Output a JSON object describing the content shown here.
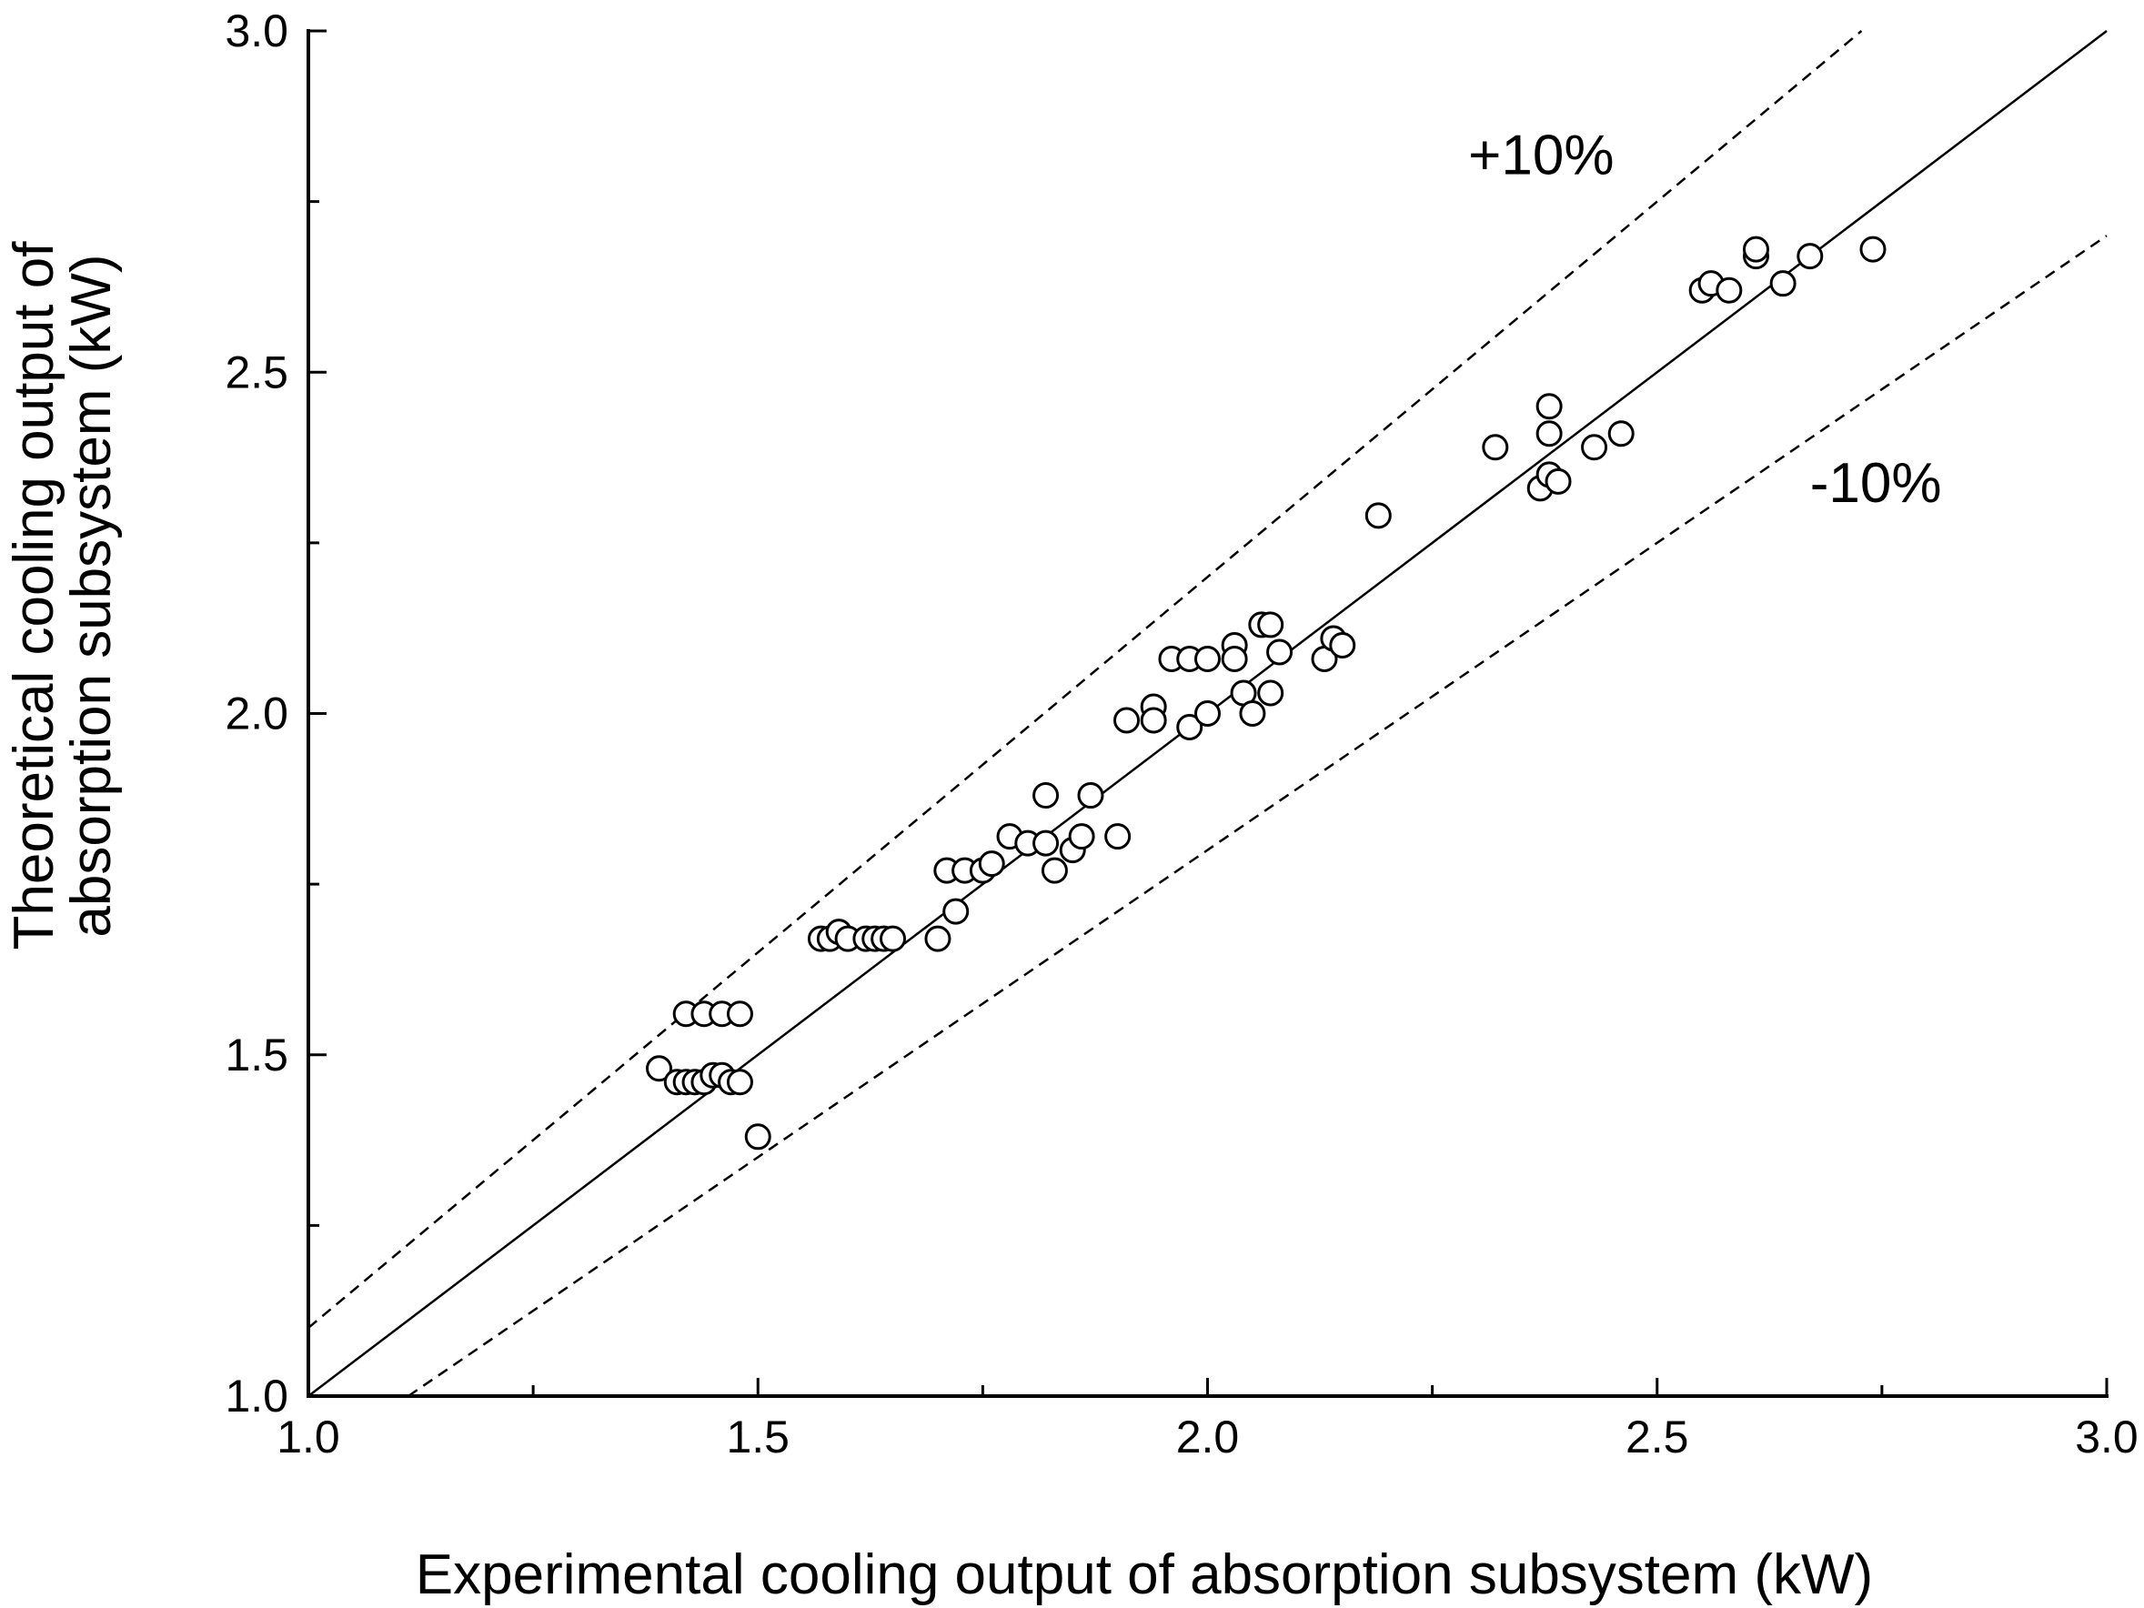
{
  "chart_data": {
    "type": "scatter",
    "xlabel": "Experimental cooling output of absorption subsystem (kW)",
    "ylabel_lines": [
      "Theoretical cooling output of",
      "absorption subsystem (kW)"
    ],
    "xlim": [
      1.0,
      3.0
    ],
    "ylim": [
      1.0,
      3.0
    ],
    "x_ticks": [
      1.0,
      1.5,
      2.0,
      2.5,
      3.0
    ],
    "y_ticks": [
      1.0,
      1.5,
      2.0,
      2.5,
      3.0
    ],
    "x_tick_labels": [
      "1.0",
      "1.5",
      "2.0",
      "2.5",
      "3.0"
    ],
    "y_tick_labels": [
      "1.0",
      "1.5",
      "2.0",
      "2.5",
      "3.0"
    ],
    "x_minor_step": 0.25,
    "y_minor_step": 0.25,
    "reference_lines": [
      {
        "name": "y = x",
        "slope": 1.0,
        "style": "solid"
      },
      {
        "name": "+10%",
        "slope": 1.1,
        "style": "dashed"
      },
      {
        "name": "-10%",
        "slope": 0.9,
        "style": "dashed"
      }
    ],
    "annotations": [
      {
        "text": "+10%",
        "x": 2.29,
        "y": 2.79
      },
      {
        "text": "-10%",
        "x": 2.67,
        "y": 2.31
      }
    ],
    "points": [
      [
        1.39,
        1.48
      ],
      [
        1.41,
        1.46
      ],
      [
        1.42,
        1.46
      ],
      [
        1.43,
        1.46
      ],
      [
        1.44,
        1.46
      ],
      [
        1.45,
        1.47
      ],
      [
        1.46,
        1.47
      ],
      [
        1.47,
        1.46
      ],
      [
        1.48,
        1.46
      ],
      [
        1.42,
        1.56
      ],
      [
        1.44,
        1.56
      ],
      [
        1.46,
        1.56
      ],
      [
        1.48,
        1.56
      ],
      [
        1.5,
        1.38
      ],
      [
        1.57,
        1.67
      ],
      [
        1.58,
        1.67
      ],
      [
        1.59,
        1.68
      ],
      [
        1.6,
        1.67
      ],
      [
        1.62,
        1.67
      ],
      [
        1.63,
        1.67
      ],
      [
        1.64,
        1.67
      ],
      [
        1.65,
        1.67
      ],
      [
        1.7,
        1.67
      ],
      [
        1.71,
        1.77
      ],
      [
        1.72,
        1.71
      ],
      [
        1.73,
        1.77
      ],
      [
        1.75,
        1.77
      ],
      [
        1.76,
        1.78
      ],
      [
        1.78,
        1.82
      ],
      [
        1.8,
        1.81
      ],
      [
        1.82,
        1.81
      ],
      [
        1.82,
        1.88
      ],
      [
        1.83,
        1.77
      ],
      [
        1.85,
        1.8
      ],
      [
        1.86,
        1.82
      ],
      [
        1.87,
        1.88
      ],
      [
        1.9,
        1.82
      ],
      [
        1.91,
        1.99
      ],
      [
        1.94,
        2.01
      ],
      [
        1.94,
        1.99
      ],
      [
        1.96,
        2.08
      ],
      [
        1.98,
        2.08
      ],
      [
        1.98,
        1.98
      ],
      [
        2.0,
        2.08
      ],
      [
        2.0,
        2.0
      ],
      [
        2.03,
        2.1
      ],
      [
        2.03,
        2.08
      ],
      [
        2.04,
        2.03
      ],
      [
        2.05,
        2.0
      ],
      [
        2.06,
        2.13
      ],
      [
        2.07,
        2.13
      ],
      [
        2.07,
        2.03
      ],
      [
        2.08,
        2.09
      ],
      [
        2.13,
        2.08
      ],
      [
        2.14,
        2.11
      ],
      [
        2.15,
        2.1
      ],
      [
        2.19,
        2.29
      ],
      [
        2.32,
        2.39
      ],
      [
        2.37,
        2.33
      ],
      [
        2.38,
        2.35
      ],
      [
        2.38,
        2.41
      ],
      [
        2.38,
        2.45
      ],
      [
        2.39,
        2.34
      ],
      [
        2.43,
        2.39
      ],
      [
        2.46,
        2.41
      ],
      [
        2.55,
        2.62
      ],
      [
        2.56,
        2.63
      ],
      [
        2.58,
        2.62
      ],
      [
        2.61,
        2.67
      ],
      [
        2.61,
        2.68
      ],
      [
        2.64,
        2.63
      ],
      [
        2.67,
        2.67
      ],
      [
        2.74,
        2.68
      ]
    ]
  }
}
